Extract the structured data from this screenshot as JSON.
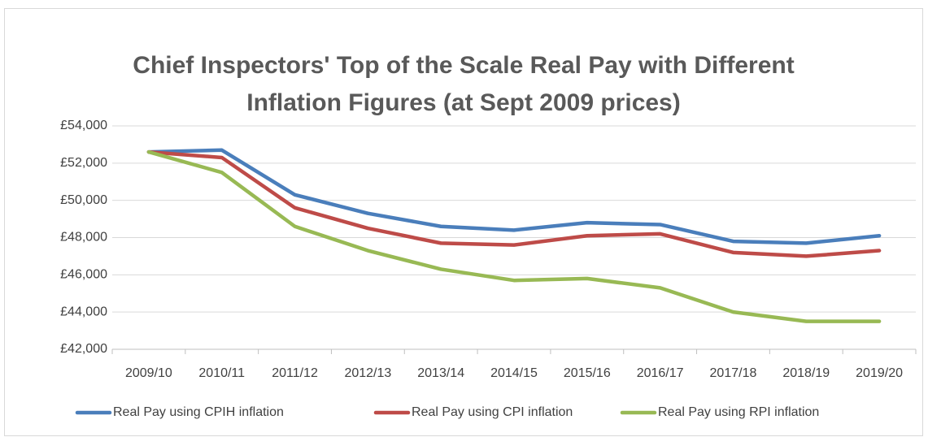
{
  "chart_data": {
    "type": "line",
    "title": "Chief Inspectors' Top of the Scale Real Pay with Different Inflation Figures (at Sept 2009 prices)",
    "categories": [
      "2009/10",
      "2010/11",
      "2011/12",
      "2012/13",
      "2013/14",
      "2014/15",
      "2015/16",
      "2016/17",
      "2017/18",
      "2018/19",
      "2019/20"
    ],
    "series": [
      {
        "name": "Real Pay using CPIH inflation",
        "color": "#4a7ebb",
        "values": [
          52600,
          52700,
          50300,
          49300,
          48600,
          48400,
          48800,
          48700,
          47800,
          47700,
          48100
        ]
      },
      {
        "name": "Real Pay using CPI inflation",
        "color": "#be4b48",
        "values": [
          52600,
          52300,
          49600,
          48500,
          47700,
          47600,
          48100,
          48200,
          47200,
          47000,
          47300
        ]
      },
      {
        "name": "Real Pay using RPI inflation",
        "color": "#98b954",
        "values": [
          52600,
          51500,
          48600,
          47300,
          46300,
          45700,
          45800,
          45300,
          44000,
          43500,
          43500
        ]
      }
    ],
    "ylim": [
      42000,
      54000
    ],
    "yticks": [
      {
        "value": 42000,
        "label": "£42,000"
      },
      {
        "value": 44000,
        "label": "£44,000"
      },
      {
        "value": 46000,
        "label": "£46,000"
      },
      {
        "value": 48000,
        "label": "£48,000"
      },
      {
        "value": 50000,
        "label": "£50,000"
      },
      {
        "value": 52000,
        "label": "£52,000"
      },
      {
        "value": 54000,
        "label": "£54,000"
      }
    ],
    "grid": true,
    "legend": "bottom"
  }
}
